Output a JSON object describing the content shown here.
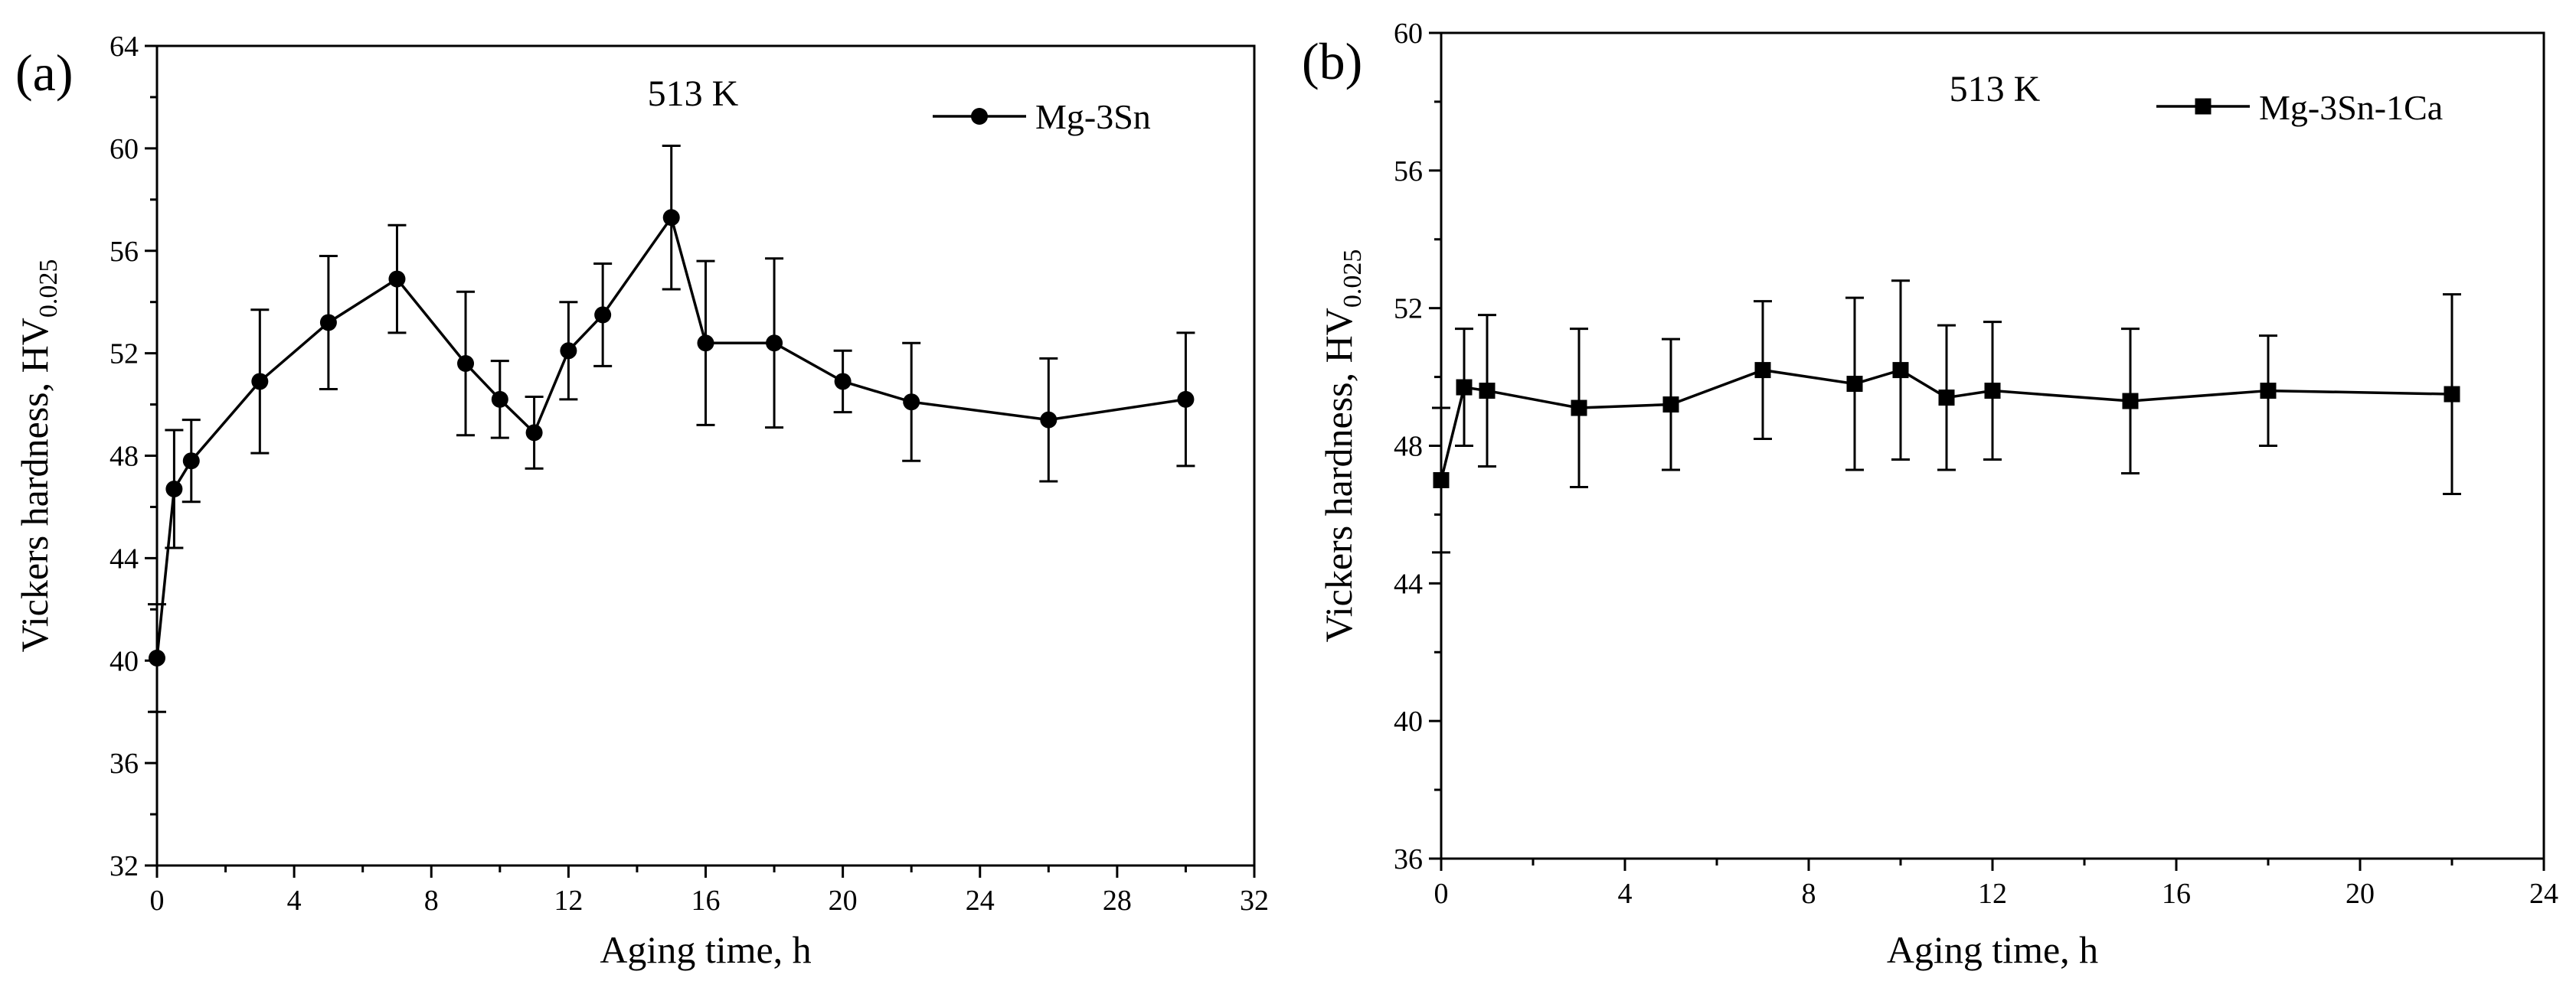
{
  "chart_data": [
    {
      "type": "line",
      "panel_label": "(a)",
      "annotation": "513 K",
      "xlabel": "Aging time, h",
      "ylabel_main": "Vickers hardness, HV",
      "ylabel_sub": "0.025",
      "xlim": [
        0,
        32
      ],
      "ylim": [
        32,
        64
      ],
      "xticks": [
        0,
        4,
        8,
        12,
        16,
        20,
        24,
        28,
        32
      ],
      "yticks": [
        32,
        36,
        40,
        44,
        48,
        52,
        56,
        60,
        64
      ],
      "legend_position": "top-right",
      "series": [
        {
          "name": "Mg-3Sn",
          "marker": "circle",
          "x": [
            0,
            0.5,
            1,
            3,
            5,
            7,
            9,
            10,
            11,
            12,
            13,
            15,
            16,
            18,
            20,
            22,
            26,
            30
          ],
          "y": [
            40.1,
            46.7,
            47.8,
            50.9,
            53.2,
            54.9,
            51.6,
            50.2,
            48.9,
            52.1,
            53.5,
            57.3,
            52.4,
            52.4,
            50.9,
            50.1,
            49.4,
            50.2
          ],
          "err": [
            2.1,
            2.3,
            1.6,
            2.8,
            2.6,
            2.1,
            2.8,
            1.5,
            1.4,
            1.9,
            2.0,
            2.8,
            3.2,
            3.3,
            1.2,
            2.3,
            2.4,
            2.6
          ]
        }
      ]
    },
    {
      "type": "line",
      "panel_label": "(b)",
      "annotation": "513 K",
      "xlabel": "Aging time, h",
      "ylabel_main": "Vickers hardness, HV",
      "ylabel_sub": "0.025",
      "xlim": [
        0,
        24
      ],
      "ylim": [
        36,
        60
      ],
      "xticks": [
        0,
        4,
        8,
        12,
        16,
        20,
        24
      ],
      "yticks": [
        36,
        40,
        44,
        48,
        52,
        56,
        60
      ],
      "legend_position": "top-right",
      "series": [
        {
          "name": "Mg-3Sn-1Ca",
          "marker": "square",
          "x": [
            0,
            0.5,
            1,
            3,
            5,
            7,
            9,
            10,
            11,
            12,
            15,
            18,
            22
          ],
          "y": [
            47.0,
            49.7,
            49.6,
            49.1,
            49.2,
            50.2,
            49.8,
            50.2,
            49.4,
            49.6,
            49.3,
            49.6,
            49.5
          ],
          "err": [
            2.1,
            1.7,
            2.2,
            2.3,
            1.9,
            2.0,
            2.5,
            2.6,
            2.1,
            2.0,
            2.1,
            1.6,
            2.9
          ]
        }
      ]
    }
  ]
}
